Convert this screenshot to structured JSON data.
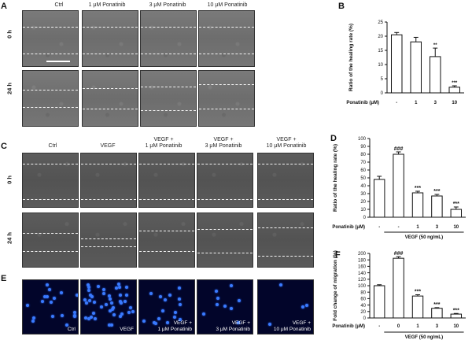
{
  "panel_letters": {
    "a": "A",
    "b": "B",
    "c": "C",
    "d": "D",
    "e": "E",
    "f": "F"
  },
  "panel_a": {
    "columns": [
      "Ctrl",
      "1 μM Ponatinib",
      "3 μM Ponatinib",
      "10 μM Ponatinib"
    ],
    "rows": [
      "0 h",
      "24 h"
    ]
  },
  "panel_c": {
    "columns": [
      "Ctrl",
      "VEGF",
      "VEGF +\n1 μM Ponatinib",
      "VEGF +\n3 μM Ponatinib",
      "VEGF +\n10 μM Ponatinib"
    ],
    "rows": [
      "0 h",
      "24 h"
    ]
  },
  "panel_e": {
    "captions": [
      "Ctrl",
      "VEGF",
      "VEGF +\n1 μM Ponatinib",
      "VEGF +\n3 μM Ponatinib",
      "VEGF +\n10 μM Ponatinib"
    ]
  },
  "chart_data": [
    {
      "id": "B",
      "type": "bar",
      "ylabel": "Ratio of the healing rate (%)",
      "xlabel": "Ponatinib (μM)",
      "categories": [
        "-",
        "1",
        "3",
        "10"
      ],
      "values": [
        20.5,
        18,
        12.8,
        2.0
      ],
      "errors": [
        0.8,
        1.6,
        3.0,
        0.5
      ],
      "significance": [
        "",
        "",
        "**",
        "***"
      ],
      "ylim": [
        0,
        25
      ],
      "yticks": [
        0,
        5,
        10,
        15,
        20,
        25
      ]
    },
    {
      "id": "D",
      "type": "bar",
      "ylabel": "Ratio of the healing rate (%)",
      "xlabel": "Ponatinib (μM)",
      "categories": [
        "-",
        "-",
        "1",
        "3",
        "10"
      ],
      "values": [
        48,
        80,
        31,
        27,
        10
      ],
      "errors": [
        4,
        3,
        2,
        2,
        3
      ],
      "significance": [
        "",
        "###",
        "***",
        "***",
        "***"
      ],
      "ylim": [
        0,
        100
      ],
      "yticks": [
        0,
        10,
        20,
        30,
        40,
        50,
        60,
        70,
        80,
        90,
        100
      ],
      "group_label": "VEGF (50 ng/mL)"
    },
    {
      "id": "F",
      "type": "bar",
      "ylabel": "Fold change of migration (%)",
      "xlabel": "Ponatinib (μM)",
      "categories": [
        "-",
        "0",
        "1",
        "3",
        "10"
      ],
      "values": [
        100,
        185,
        68,
        30,
        12
      ],
      "errors": [
        3,
        5,
        4,
        2,
        2
      ],
      "significance": [
        "",
        "###",
        "***",
        "***",
        "***"
      ],
      "ylim": [
        0,
        200
      ],
      "yticks": [
        0,
        20,
        40,
        60,
        80,
        100,
        120,
        140,
        160,
        180,
        200
      ],
      "group_label": "VEGF (50 ng/mL)"
    }
  ]
}
